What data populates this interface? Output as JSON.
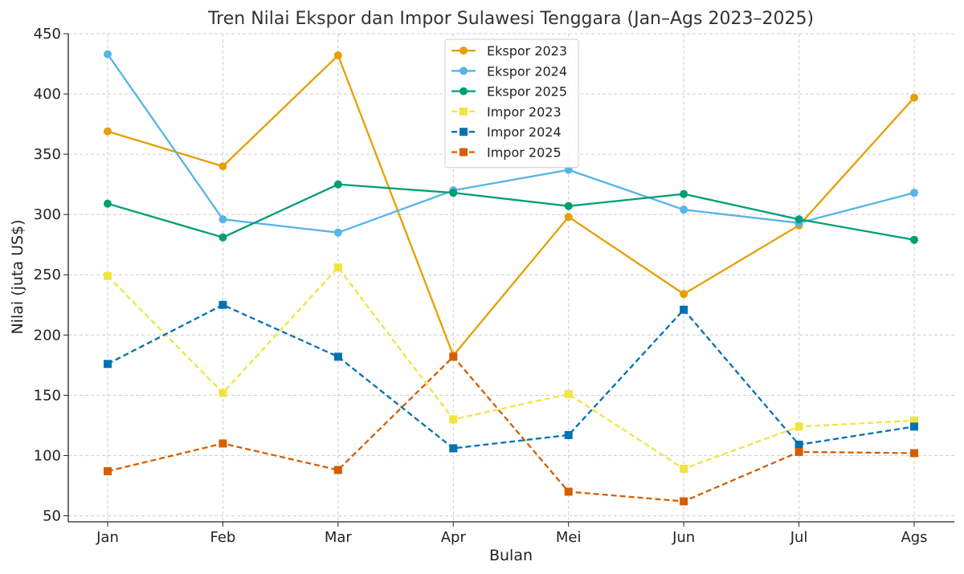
{
  "chart_data": {
    "type": "line",
    "title": "Tren Nilai Ekspor dan Impor Sulawesi Tenggara (Jan–Ags 2023–2025)",
    "xlabel": "Bulan",
    "ylabel": "Nilai (juta US$)",
    "categories": [
      "Jan",
      "Feb",
      "Mar",
      "Apr",
      "Mei",
      "Jun",
      "Jul",
      "Ags"
    ],
    "ylim": [
      45,
      450
    ],
    "yticks": [
      50,
      100,
      150,
      200,
      250,
      300,
      350,
      400,
      450
    ],
    "grid": true,
    "legend_position": "top-center",
    "series": [
      {
        "name": "Ekspor 2023",
        "color": "#E69F00",
        "style": "solid",
        "marker": "circle",
        "values": [
          369,
          340,
          432,
          183,
          298,
          234,
          291,
          397
        ]
      },
      {
        "name": "Ekspor 2024",
        "color": "#56B4E9",
        "style": "solid",
        "marker": "circle",
        "values": [
          433,
          296,
          285,
          320,
          337,
          304,
          293,
          318
        ]
      },
      {
        "name": "Ekspor 2025",
        "color": "#009E73",
        "style": "solid",
        "marker": "circle",
        "values": [
          309,
          281,
          325,
          318,
          307,
          317,
          296,
          279
        ]
      },
      {
        "name": "Impor 2023",
        "color": "#F0E442",
        "style": "dashed",
        "marker": "square",
        "values": [
          249,
          152,
          256,
          130,
          151,
          89,
          124,
          129
        ]
      },
      {
        "name": "Impor 2024",
        "color": "#0072B2",
        "style": "dashed",
        "marker": "square",
        "values": [
          176,
          225,
          182,
          106,
          117,
          221,
          109,
          124
        ]
      },
      {
        "name": "Impor 2025",
        "color": "#D55E00",
        "style": "dashed",
        "marker": "square",
        "values": [
          87,
          110,
          88,
          182,
          70,
          62,
          103,
          102
        ]
      }
    ]
  }
}
